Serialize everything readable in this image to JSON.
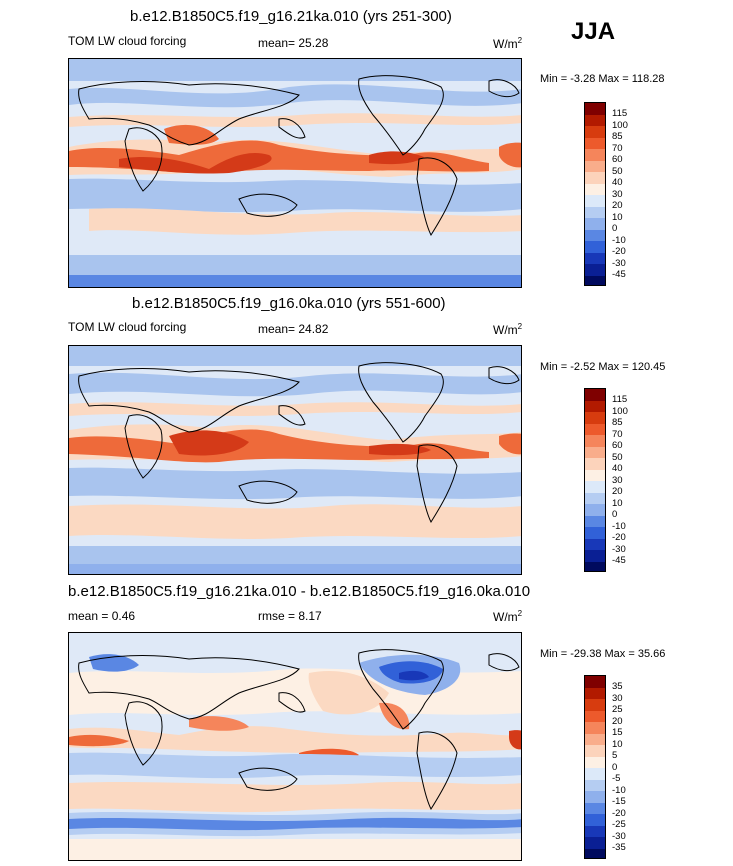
{
  "season": "JJA",
  "panels": [
    {
      "title": "b.e12.B1850C5.f19_g16.21ka.010 (yrs 251-300)",
      "left_label": "TOM LW cloud forcing",
      "center_label": "mean=  25.28",
      "units_base": "W/m",
      "units_exp": "2",
      "minmax": "Min =  -3.28 Max = 118.28",
      "colorbar_labels": [
        "115",
        "100",
        "85",
        "70",
        "60",
        "50",
        "40",
        "30",
        "20",
        "10",
        "0",
        "-10",
        "-20",
        "-30",
        "-45"
      ]
    },
    {
      "title": "b.e12.B1850C5.f19_g16.0ka.010 (yrs 551-600)",
      "left_label": "TOM LW cloud forcing",
      "center_label": "mean=  24.82",
      "units_base": "W/m",
      "units_exp": "2",
      "minmax": "Min =  -2.52 Max = 120.45",
      "colorbar_labels": [
        "115",
        "100",
        "85",
        "70",
        "60",
        "50",
        "40",
        "30",
        "20",
        "10",
        "0",
        "-10",
        "-20",
        "-30",
        "-45"
      ]
    },
    {
      "title": "b.e12.B1850C5.f19_g16.21ka.010 - b.e12.B1850C5.f19_g16.0ka.010",
      "left_label": "mean =   0.46",
      "center_label": "rmse =   8.17",
      "units_base": "W/m",
      "units_exp": "2",
      "minmax": "Min = -29.38 Max =  35.66",
      "colorbar_labels": [
        "35",
        "30",
        "25",
        "20",
        "15",
        "10",
        "5",
        "0",
        "-5",
        "-10",
        "-15",
        "-20",
        "-25",
        "-30",
        "-35"
      ]
    }
  ],
  "colors": {
    "cbar": [
      "#7f0000",
      "#b21a00",
      "#d73c0f",
      "#ed5a2c",
      "#f5855b",
      "#f9ad8b",
      "#fcd3bb",
      "#fdf0e4",
      "#dce9f9",
      "#b5cdf2",
      "#8fb0ec",
      "#5a87e3",
      "#3161d8",
      "#1838b8",
      "#0a1f94",
      "#000a5e"
    ],
    "ocean_pale": "#dfe9f7",
    "ocean_blue": "#a9c4ee",
    "band_peach": "#fbd9c2",
    "band_orange": "#ee6a3a",
    "band_red": "#d43a18",
    "deep_blue": "#2f58cf",
    "land_stroke": "#000000"
  },
  "chart_data": [
    {
      "type": "heatmap",
      "title": "b.e12.B1850C5.f19_g16.21ka.010 (yrs 251-300)",
      "variable": "TOM LW cloud forcing",
      "season": "JJA",
      "units": "W/m2",
      "mean": 25.28,
      "min": -3.28,
      "max": 118.28,
      "contour_levels": [
        -45,
        -30,
        -20,
        -10,
        0,
        10,
        20,
        30,
        40,
        50,
        60,
        70,
        85,
        100,
        115
      ]
    },
    {
      "type": "heatmap",
      "title": "b.e12.B1850C5.f19_g16.0ka.010 (yrs 551-600)",
      "variable": "TOM LW cloud forcing",
      "season": "JJA",
      "units": "W/m2",
      "mean": 24.82,
      "min": -2.52,
      "max": 120.45,
      "contour_levels": [
        -45,
        -30,
        -20,
        -10,
        0,
        10,
        20,
        30,
        40,
        50,
        60,
        70,
        85,
        100,
        115
      ]
    },
    {
      "type": "heatmap",
      "title": "b.e12.B1850C5.f19_g16.21ka.010 - b.e12.B1850C5.f19_g16.0ka.010",
      "variable": "difference",
      "season": "JJA",
      "units": "W/m2",
      "mean": 0.46,
      "rmse": 8.17,
      "min": -29.38,
      "max": 35.66,
      "contour_levels": [
        -35,
        -30,
        -25,
        -20,
        -15,
        -10,
        -5,
        0,
        5,
        10,
        15,
        20,
        25,
        30,
        35
      ]
    }
  ]
}
